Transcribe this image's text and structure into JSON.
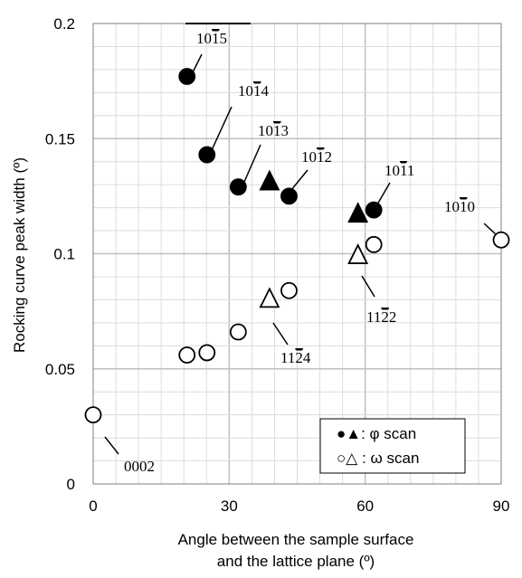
{
  "chart_data": {
    "type": "scatter",
    "xlabel_lines": [
      "Angle between the sample surface",
      "and the lattice plane (º)"
    ],
    "ylabel": "Rocking curve peak width (º)",
    "xlim": [
      0,
      90
    ],
    "ylim": [
      0,
      0.2
    ],
    "x_ticks": [
      "0",
      "30",
      "60",
      "90"
    ],
    "y_ticks": [
      "0",
      "0.05",
      "0.1",
      "0.15",
      "0.2"
    ],
    "grid": true,
    "legend_position": "bottom-right",
    "legend": [
      {
        "label": "●▲: φ scan",
        "symbols": "filled"
      },
      {
        "label": "○△  : ω scan",
        "symbols": "open"
      }
    ],
    "series": [
      {
        "scan": "φ",
        "fill": "filled",
        "points": [
          {
            "x": 20.7,
            "y": 0.177,
            "shape": "circle",
            "label": "1015"
          },
          {
            "x": 25.1,
            "y": 0.143,
            "shape": "circle",
            "label": "1014"
          },
          {
            "x": 32.0,
            "y": 0.129,
            "shape": "circle",
            "label": "1013"
          },
          {
            "x": 38.9,
            "y": 0.131,
            "shape": "triangle",
            "label": ""
          },
          {
            "x": 43.2,
            "y": 0.125,
            "shape": "circle",
            "label": "1012"
          },
          {
            "x": 58.4,
            "y": 0.117,
            "shape": "triangle",
            "label": ""
          },
          {
            "x": 61.9,
            "y": 0.119,
            "shape": "circle",
            "label": "1011"
          }
        ]
      },
      {
        "scan": "ω",
        "fill": "open",
        "points": [
          {
            "x": 0.0,
            "y": 0.03,
            "shape": "circle",
            "label": "0002"
          },
          {
            "x": 20.7,
            "y": 0.056,
            "shape": "circle",
            "label": ""
          },
          {
            "x": 25.1,
            "y": 0.057,
            "shape": "circle",
            "label": ""
          },
          {
            "x": 32.0,
            "y": 0.066,
            "shape": "circle",
            "label": ""
          },
          {
            "x": 38.9,
            "y": 0.08,
            "shape": "triangle",
            "label": "1124"
          },
          {
            "x": 43.2,
            "y": 0.084,
            "shape": "circle",
            "label": ""
          },
          {
            "x": 58.4,
            "y": 0.099,
            "shape": "triangle",
            "label": "1122"
          },
          {
            "x": 61.9,
            "y": 0.104,
            "shape": "circle",
            "label": ""
          },
          {
            "x": 90.0,
            "y": 0.106,
            "shape": "circle",
            "label": "1010"
          }
        ]
      }
    ],
    "plane_labels": [
      {
        "id": "1015",
        "text": "1015",
        "bar_index": 2
      },
      {
        "id": "1014",
        "text": "1014",
        "bar_index": 2
      },
      {
        "id": "1013",
        "text": "1013",
        "bar_index": 2
      },
      {
        "id": "1012",
        "text": "1012",
        "bar_index": 2
      },
      {
        "id": "1011",
        "text": "1011",
        "bar_index": 2
      },
      {
        "id": "1010",
        "text": "1010",
        "bar_index": 2
      },
      {
        "id": "1124",
        "text": "1124",
        "bar_index": 2
      },
      {
        "id": "1122",
        "text": "1122",
        "bar_index": 2
      },
      {
        "id": "0002",
        "text": "0002",
        "bar_index": -1
      }
    ]
  }
}
